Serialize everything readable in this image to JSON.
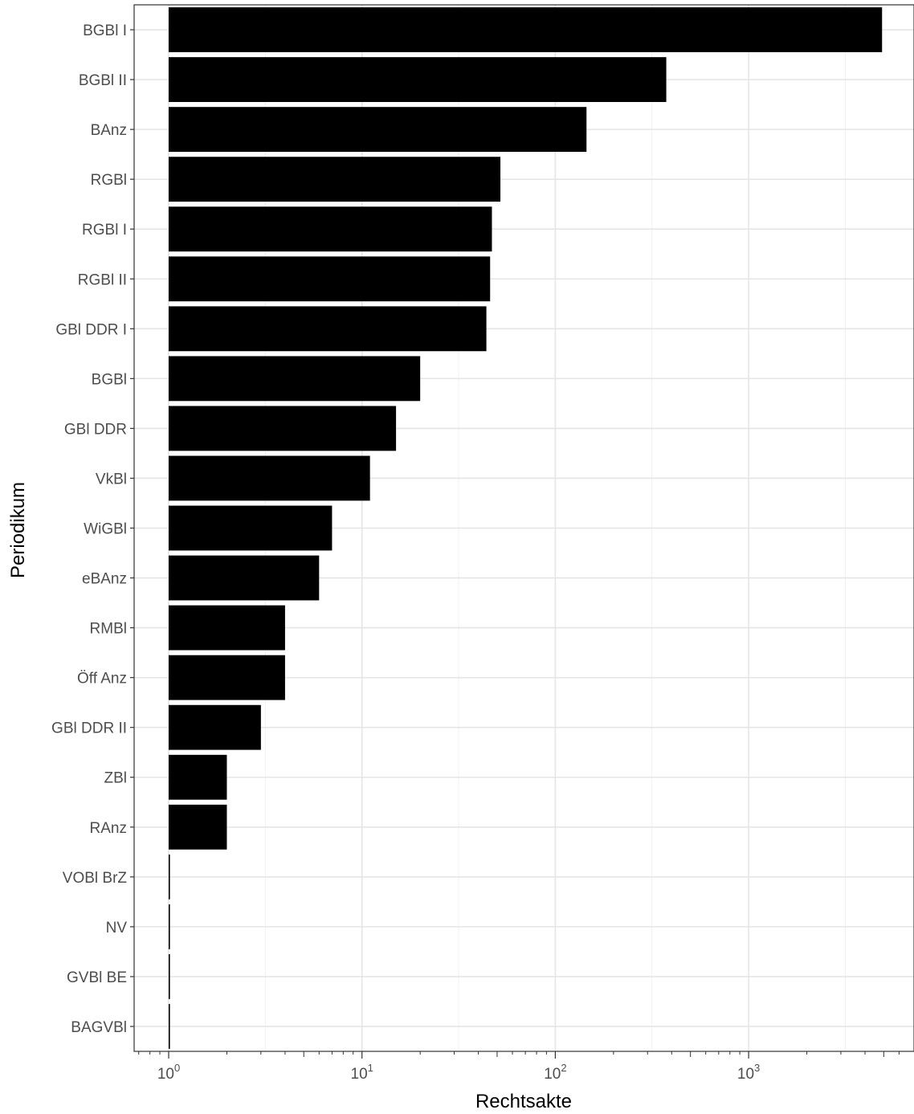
{
  "chart_data": {
    "type": "bar",
    "orientation": "horizontal",
    "xlabel": "Rechtsakte",
    "ylabel": "Periodikum",
    "x_scale": "log10",
    "xlim": [
      0.7,
      6500
    ],
    "x_ticks": [
      {
        "value": 1,
        "base": "10",
        "exp": "0"
      },
      {
        "value": 10,
        "base": "10",
        "exp": "1"
      },
      {
        "value": 100,
        "base": "10",
        "exp": "2"
      },
      {
        "value": 1000,
        "base": "10",
        "exp": "3"
      }
    ],
    "grid": true,
    "legend": "none",
    "bar_color": "#000000",
    "categories": [
      "BGBl I",
      "BGBl II",
      "BAnz",
      "RGBl",
      "RGBl I",
      "RGBl II",
      "GBl DDR I",
      "BGBl",
      "GBl DDR",
      "VkBl",
      "WiGBl",
      "eBAnz",
      "RMBl",
      "Öff Anz",
      "GBl DDR II",
      "ZBl",
      "RAnz",
      "VOBl BrZ",
      "NV",
      "GVBl BE",
      "BAGVBl"
    ],
    "values": [
      4900,
      375,
      145,
      52,
      47,
      46,
      44,
      20,
      15,
      11,
      7,
      6,
      4,
      4,
      3,
      2,
      2,
      1,
      1,
      1,
      1
    ]
  }
}
